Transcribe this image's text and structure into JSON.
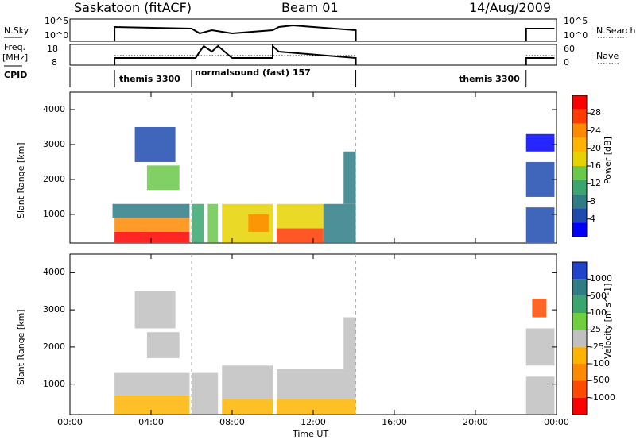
{
  "header": {
    "station": "Saskatoon (fitACF)",
    "beam": "Beam 01",
    "date": "14/Aug/2009"
  },
  "top_panels": {
    "nsky_label": "N.Sky",
    "nsky_ticks": [
      "10^5",
      "10^0"
    ],
    "nsky_right_ticks": [
      "10^5",
      "10^0"
    ],
    "nsearch_label": "N.Search",
    "freq_label_line1": "Freq.",
    "freq_label_line2": "[MHz]",
    "freq_ticks": [
      "18",
      "8"
    ],
    "nave_ticks": [
      "60",
      "0"
    ],
    "nave_label": "Nave",
    "cpid_label": "CPID",
    "cpid_segments": [
      {
        "name": "themis 3300"
      },
      {
        "name": "normalsound (fast) 157"
      },
      {
        "name": "themis 3300"
      }
    ]
  },
  "power_colorbar": {
    "label": "Power [dB]",
    "ticks": [
      "28",
      "24",
      "20",
      "16",
      "12",
      "8",
      "4"
    ],
    "colors": [
      "#ff0000",
      "#ff3b00",
      "#ff8a00",
      "#ffb400",
      "#e6d200",
      "#6ac84a",
      "#3aa56e",
      "#2f7c85",
      "#1e4bb0",
      "#0000ff"
    ]
  },
  "velocity_colorbar": {
    "label": "Velocity [m s^-1]",
    "ticks": [
      "1000",
      "500",
      "100",
      "25",
      "-25",
      "-100",
      "-500",
      "-1000"
    ],
    "colors": [
      "#2244cc",
      "#2f7c85",
      "#3aa56e",
      "#6fcf3f",
      "#c0c0c0",
      "#ffb400",
      "#ff8a00",
      "#ff4a00",
      "#ff0000"
    ]
  },
  "chart_data": [
    {
      "type": "heatmap",
      "title": "Power",
      "xlabel": "Time UT",
      "ylabel": "Slant Range [km]",
      "xticks": [
        "00:00",
        "04:00",
        "08:00",
        "12:00",
        "16:00",
        "20:00",
        "00:00"
      ],
      "yticks": [
        "1000",
        "2000",
        "3000",
        "4000"
      ],
      "xlim_hours": [
        0,
        24
      ],
      "ylim_km": [
        180,
        4500
      ],
      "regions": [
        {
          "t0": 2.2,
          "t1": 5.9,
          "r0": 200,
          "r1": 500,
          "level": 0
        },
        {
          "t0": 2.2,
          "t1": 5.9,
          "r0": 500,
          "r1": 900,
          "level": 2
        },
        {
          "t0": 2.1,
          "t1": 5.9,
          "r0": 900,
          "r1": 1300,
          "level": 7
        },
        {
          "t0": 3.8,
          "t1": 5.4,
          "r0": 1700,
          "r1": 2400,
          "level": 5
        },
        {
          "t0": 3.2,
          "t1": 5.2,
          "r0": 2500,
          "r1": 3500,
          "level": 8
        },
        {
          "t0": 6.0,
          "t1": 6.6,
          "r0": 200,
          "r1": 1300,
          "level": 6
        },
        {
          "t0": 6.8,
          "t1": 7.3,
          "r0": 200,
          "r1": 1300,
          "level": 5
        },
        {
          "t0": 7.5,
          "t1": 10.0,
          "r0": 200,
          "r1": 1300,
          "level": 4
        },
        {
          "t0": 8.8,
          "t1": 9.8,
          "r0": 500,
          "r1": 1000,
          "level": 2
        },
        {
          "t0": 10.2,
          "t1": 12.5,
          "r0": 200,
          "r1": 600,
          "level": 1
        },
        {
          "t0": 10.2,
          "t1": 12.5,
          "r0": 600,
          "r1": 1300,
          "level": 4
        },
        {
          "t0": 12.5,
          "t1": 14.1,
          "r0": 200,
          "r1": 1300,
          "level": 7
        },
        {
          "t0": 13.5,
          "t1": 14.1,
          "r0": 1300,
          "r1": 2800,
          "level": 7
        },
        {
          "t0": 22.5,
          "t1": 23.9,
          "r0": 200,
          "r1": 1200,
          "level": 8
        },
        {
          "t0": 22.5,
          "t1": 23.9,
          "r0": 1500,
          "r1": 2500,
          "level": 8
        },
        {
          "t0": 22.5,
          "t1": 23.9,
          "r0": 2800,
          "r1": 3300,
          "level": 9
        }
      ]
    },
    {
      "type": "heatmap",
      "title": "Velocity",
      "xlabel": "Time UT",
      "ylabel": "Slant Range [km]",
      "xticks": [
        "00:00",
        "04:00",
        "08:00",
        "12:00",
        "16:00",
        "20:00",
        "00:00"
      ],
      "yticks": [
        "1000",
        "2000",
        "3000",
        "4000"
      ],
      "xlim_hours": [
        0,
        24
      ],
      "ylim_km": [
        180,
        4500
      ],
      "regions": [
        {
          "t0": 2.2,
          "t1": 5.9,
          "r0": 200,
          "r1": 700,
          "level": 5
        },
        {
          "t0": 2.2,
          "t1": 5.9,
          "r0": 700,
          "r1": 1300,
          "level": 4
        },
        {
          "t0": 3.8,
          "t1": 5.4,
          "r0": 1700,
          "r1": 2400,
          "level": 4
        },
        {
          "t0": 3.2,
          "t1": 5.2,
          "r0": 2500,
          "r1": 3500,
          "level": 4
        },
        {
          "t0": 6.0,
          "t1": 7.3,
          "r0": 200,
          "r1": 1300,
          "level": 4
        },
        {
          "t0": 7.5,
          "t1": 10.0,
          "r0": 200,
          "r1": 600,
          "level": 5
        },
        {
          "t0": 7.5,
          "t1": 10.0,
          "r0": 600,
          "r1": 1500,
          "level": 4
        },
        {
          "t0": 10.2,
          "t1": 14.1,
          "r0": 200,
          "r1": 600,
          "level": 5
        },
        {
          "t0": 10.2,
          "t1": 14.1,
          "r0": 600,
          "r1": 1400,
          "level": 4
        },
        {
          "t0": 13.5,
          "t1": 14.1,
          "r0": 1400,
          "r1": 2800,
          "level": 4
        },
        {
          "t0": 22.5,
          "t1": 23.9,
          "r0": 200,
          "r1": 1200,
          "level": 4
        },
        {
          "t0": 22.5,
          "t1": 23.9,
          "r0": 1500,
          "r1": 2500,
          "level": 4
        },
        {
          "t0": 22.8,
          "t1": 23.5,
          "r0": 2800,
          "r1": 3300,
          "level": 7
        }
      ]
    }
  ]
}
